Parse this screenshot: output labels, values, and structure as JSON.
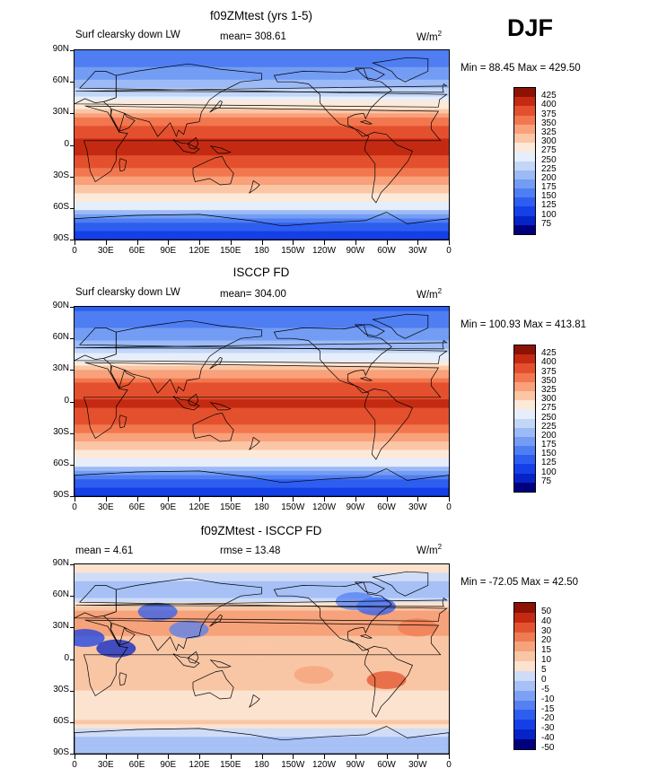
{
  "season": "DJF",
  "panels": [
    {
      "title": "f09ZMtest (yrs 1-5)",
      "left_label": "Surf clearsky down LW",
      "center_label": "mean= 308.61",
      "units_base": "W/m",
      "units_exp": "2",
      "minmax": "Min =  88.45 Max = 429.50",
      "kind": "abs",
      "colorbar_labels": [
        "425",
        "400",
        "375",
        "350",
        "325",
        "300",
        "275",
        "250",
        "225",
        "200",
        "175",
        "150",
        "125",
        "100",
        "75"
      ]
    },
    {
      "title": "ISCCP FD",
      "left_label": "Surf clearsky down LW",
      "center_label": "mean= 304.00",
      "units_base": "W/m",
      "units_exp": "2",
      "minmax": "Min = 100.93 Max = 413.81",
      "kind": "abs",
      "colorbar_labels": [
        "425",
        "400",
        "375",
        "350",
        "325",
        "300",
        "275",
        "250",
        "225",
        "200",
        "175",
        "150",
        "125",
        "100",
        "75"
      ]
    },
    {
      "title": "f09ZMtest - ISCCP FD",
      "left_label": "mean =    4.61",
      "center_label": "rmse =   13.48",
      "units_base": "W/m",
      "units_exp": "2",
      "minmax": "Min = -72.05 Max =  42.50",
      "kind": "diff",
      "colorbar_labels": [
        "50",
        "40",
        "30",
        "20",
        "15",
        "10",
        "5",
        "0",
        "-5",
        "-10",
        "-15",
        "-20",
        "-30",
        "-40",
        "-50"
      ]
    }
  ],
  "lat_labels": [
    "90N",
    "60N",
    "30N",
    "0",
    "30S",
    "60S",
    "90S"
  ],
  "lon_labels": [
    "0",
    "30E",
    "60E",
    "90E",
    "120E",
    "150E",
    "180",
    "150W",
    "120W",
    "90W",
    "60W",
    "30W",
    "0"
  ],
  "colors": {
    "abs_scale": [
      "#00007e",
      "#0623c6",
      "#1540e8",
      "#2e5ef0",
      "#4f7ef2",
      "#739cf4",
      "#9cbaf6",
      "#c2d6f8",
      "#e6eefb",
      "#fde9d8",
      "#fbc6a6",
      "#f8a17a",
      "#f2774f",
      "#e4502e",
      "#c42a12",
      "#8c1204"
    ],
    "diff_scale": [
      "#00007e",
      "#0623c6",
      "#1540e8",
      "#2e5ef0",
      "#5480f2",
      "#7ea0f4",
      "#a7c0f6",
      "#cfdcf8",
      "#fbe3cf",
      "#f9c6a5",
      "#f6a27a",
      "#ef7b52",
      "#e2542f",
      "#c42a12",
      "#8c1204"
    ]
  },
  "chart_data": [
    {
      "type": "heatmap",
      "title": "f09ZMtest (yrs 1-5)",
      "variable": "Surf clearsky down LW",
      "units": "W/m2",
      "mean": 308.61,
      "min": 88.45,
      "max": 429.5,
      "contour_levels": [
        75,
        100,
        125,
        150,
        175,
        200,
        225,
        250,
        275,
        300,
        325,
        350,
        375,
        400,
        425
      ],
      "x_axis": {
        "label": "",
        "range": [
          0,
          360
        ],
        "ticks": [
          "0",
          "30E",
          "60E",
          "90E",
          "120E",
          "150E",
          "180",
          "150W",
          "120W",
          "90W",
          "60W",
          "30W",
          "0"
        ]
      },
      "y_axis": {
        "label": "",
        "range": [
          -90,
          90
        ],
        "ticks": [
          "90N",
          "60N",
          "30N",
          "0",
          "30S",
          "60S",
          "90S"
        ]
      },
      "zonal_profile": {
        "lat": [
          90,
          75,
          60,
          45,
          30,
          15,
          0,
          -15,
          -30,
          -45,
          -60,
          -75,
          -90
        ],
        "value": [
          150,
          175,
          205,
          250,
          325,
          390,
          410,
          395,
          355,
          305,
          255,
          140,
          100
        ]
      }
    },
    {
      "type": "heatmap",
      "title": "ISCCP FD",
      "variable": "Surf clearsky down LW",
      "units": "W/m2",
      "mean": 304.0,
      "min": 100.93,
      "max": 413.81,
      "contour_levels": [
        75,
        100,
        125,
        150,
        175,
        200,
        225,
        250,
        275,
        300,
        325,
        350,
        375,
        400,
        425
      ],
      "x_axis": {
        "label": "",
        "range": [
          0,
          360
        ],
        "ticks": [
          "0",
          "30E",
          "60E",
          "90E",
          "120E",
          "150E",
          "180",
          "150W",
          "120W",
          "90W",
          "60W",
          "30W",
          "0"
        ]
      },
      "y_axis": {
        "label": "",
        "range": [
          -90,
          90
        ],
        "ticks": [
          "90N",
          "60N",
          "30N",
          "0",
          "30S",
          "60S",
          "90S"
        ]
      },
      "zonal_profile": {
        "lat": [
          90,
          75,
          60,
          45,
          30,
          15,
          0,
          -15,
          -30,
          -45,
          -60,
          -75,
          -90
        ],
        "value": [
          140,
          165,
          195,
          245,
          320,
          385,
          405,
          390,
          350,
          300,
          250,
          145,
          110
        ]
      }
    },
    {
      "type": "heatmap",
      "title": "f09ZMtest - ISCCP FD",
      "variable": "Surf clearsky down LW",
      "units": "W/m2",
      "mean": 4.61,
      "rmse": 13.48,
      "min": -72.05,
      "max": 42.5,
      "contour_levels": [
        -50,
        -40,
        -30,
        -20,
        -15,
        -10,
        -5,
        0,
        5,
        10,
        15,
        20,
        30,
        40,
        50
      ],
      "x_axis": {
        "label": "",
        "range": [
          0,
          360
        ],
        "ticks": [
          "0",
          "30E",
          "60E",
          "90E",
          "120E",
          "150E",
          "180",
          "150W",
          "120W",
          "90W",
          "60W",
          "30W",
          "0"
        ]
      },
      "y_axis": {
        "label": "",
        "range": [
          -90,
          90
        ],
        "ticks": [
          "90N",
          "60N",
          "30N",
          "0",
          "30S",
          "60S",
          "90S"
        ]
      },
      "zonal_profile": {
        "lat": [
          90,
          75,
          60,
          45,
          30,
          15,
          0,
          -15,
          -30,
          -45,
          -60,
          -75,
          -90
        ],
        "value": [
          5,
          -5,
          -10,
          10,
          15,
          5,
          5,
          10,
          5,
          0,
          5,
          -5,
          -10
        ]
      }
    }
  ]
}
